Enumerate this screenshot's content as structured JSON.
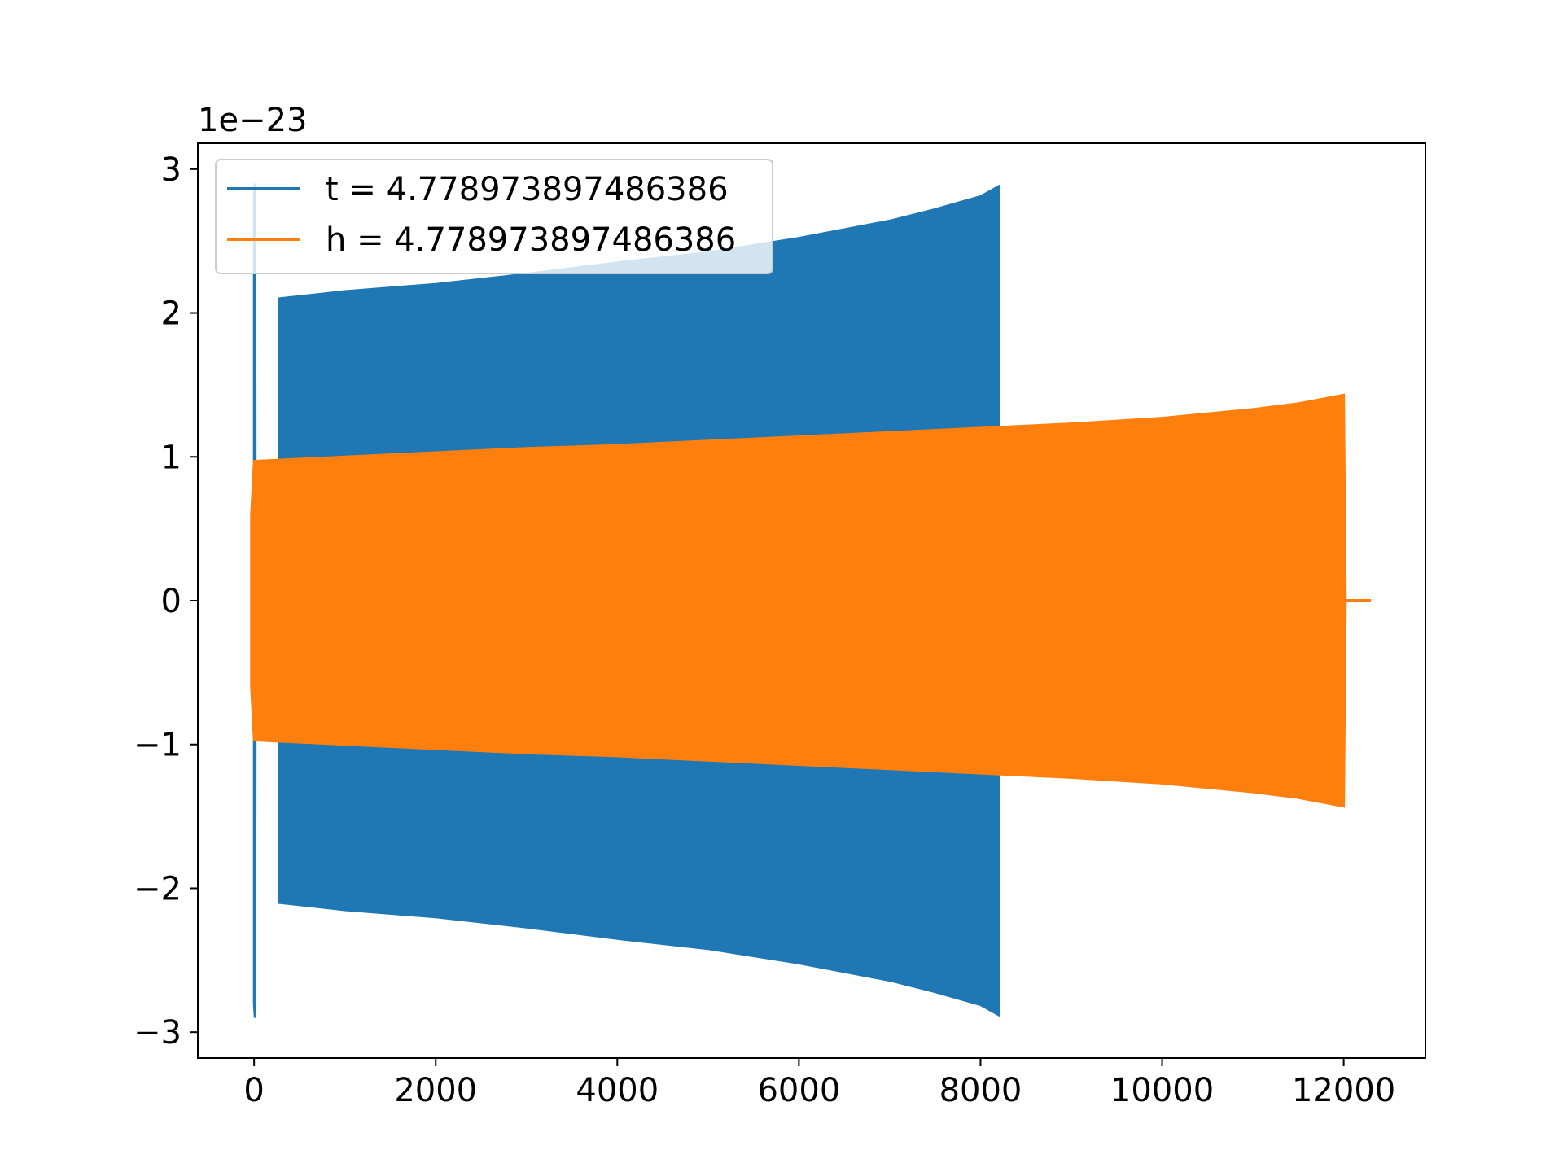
{
  "chart_data": {
    "type": "line",
    "title": "",
    "xlabel": "",
    "ylabel": "",
    "y_offset_label": "1e−23",
    "xlim": [
      -620,
      12900
    ],
    "ylim": [
      -3.18,
      3.18
    ],
    "x_ticks": [
      0,
      2000,
      4000,
      6000,
      8000,
      10000,
      12000
    ],
    "x_tick_labels": [
      "0",
      "2000",
      "4000",
      "6000",
      "8000",
      "10000",
      "12000"
    ],
    "y_ticks": [
      -3,
      -2,
      -1,
      0,
      1,
      2,
      3
    ],
    "y_tick_labels": [
      "−3",
      "−2",
      "−1",
      "0",
      "1",
      "2",
      "3"
    ],
    "grid": false,
    "legend_position": "upper left",
    "series": [
      {
        "name": "t = 4.778973897486386",
        "color": "#1f77b4",
        "x": [
          0,
          0,
          10,
          15,
          280,
          280,
          1000,
          2000,
          3000,
          4000,
          5000,
          6000,
          7000,
          7500,
          8000,
          8200,
          8200
        ],
        "envelope": [
          0.2,
          2.8,
          2.9,
          0.4,
          0.4,
          2.1,
          2.15,
          2.2,
          2.27,
          2.35,
          2.42,
          2.52,
          2.64,
          2.72,
          2.81,
          2.88,
          0
        ],
        "style": "dense oscillation (filled envelope)"
      },
      {
        "name": "h = 4.778973897486386",
        "color": "#ff7f0e",
        "x": [
          -30,
          0,
          1000,
          2000,
          3000,
          4000,
          5000,
          6000,
          7000,
          8000,
          9000,
          10000,
          11000,
          11500,
          12000,
          12020,
          12300
        ],
        "envelope": [
          0.6,
          0.97,
          1.0,
          1.03,
          1.06,
          1.08,
          1.11,
          1.14,
          1.17,
          1.2,
          1.23,
          1.27,
          1.33,
          1.37,
          1.43,
          0,
          0
        ],
        "style": "dense oscillation (filled envelope)"
      }
    ]
  }
}
